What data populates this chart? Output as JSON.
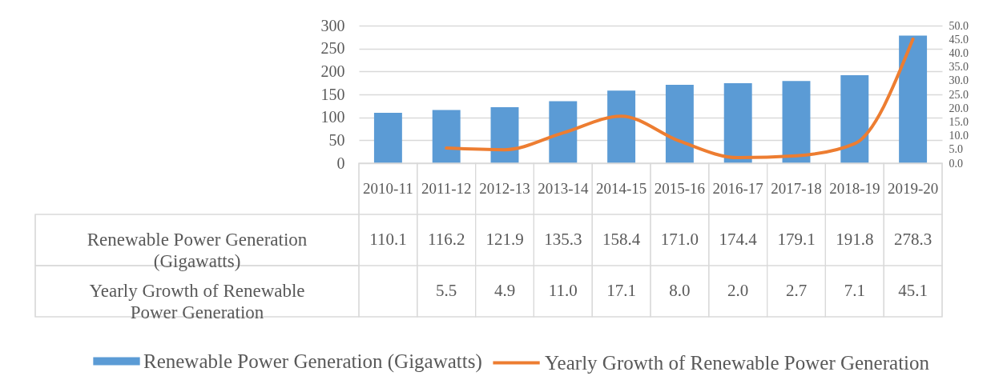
{
  "chart_data": {
    "type": "bar",
    "categories": [
      "2010-11",
      "2011-12",
      "2012-13",
      "2013-14",
      "2014-15",
      "2015-16",
      "2016-17",
      "2017-18",
      "2018-19",
      "2019-20"
    ],
    "series": [
      {
        "name": "Renewable Power Generation (Gigawatts)",
        "color": "#5b9bd5",
        "values": [
          110.1,
          116.2,
          121.9,
          135.3,
          158.4,
          171,
          174.4,
          179.1,
          191.8,
          278.3
        ],
        "value_labels": [
          "110.1",
          "116.2",
          "121.9",
          "135.3",
          "158.4",
          "171.0",
          "174.4",
          "179.1",
          "191.8",
          "278.3"
        ]
      },
      {
        "name": "Yearly Growth of Renewable Power Generation",
        "type": "line",
        "axis": "y2",
        "color": "#ed7d31",
        "values": [
          null,
          5.5,
          4.9,
          11,
          17.1,
          8,
          2,
          2.7,
          7.1,
          45.1
        ],
        "value_labels": [
          null,
          "5.5",
          "4.9",
          "11.0",
          "17.1",
          "8.0",
          "2.0",
          "2.7",
          "7.1",
          "45.1"
        ]
      }
    ],
    "ylim": [
      0,
      300
    ],
    "yticks": [
      0,
      50,
      100,
      150,
      200,
      250,
      300
    ],
    "y2lim": [
      0,
      50
    ],
    "y2ticks": [
      {
        "value": 0,
        "label": "0.0"
      },
      {
        "value": 5,
        "label": "5.0"
      },
      {
        "value": 10,
        "label": "10.0"
      },
      {
        "value": 15,
        "label": "15.0"
      },
      {
        "value": 20,
        "label": "20.0"
      },
      {
        "value": 25,
        "label": "25.0"
      },
      {
        "value": 30,
        "label": "30.0"
      },
      {
        "value": 35,
        "label": "35.0"
      },
      {
        "value": 40,
        "label": "40.0"
      },
      {
        "value": 45,
        "label": "45.0"
      },
      {
        "value": 50,
        "label": "50.0"
      }
    ],
    "grid": "y",
    "legend": "bottom"
  }
}
